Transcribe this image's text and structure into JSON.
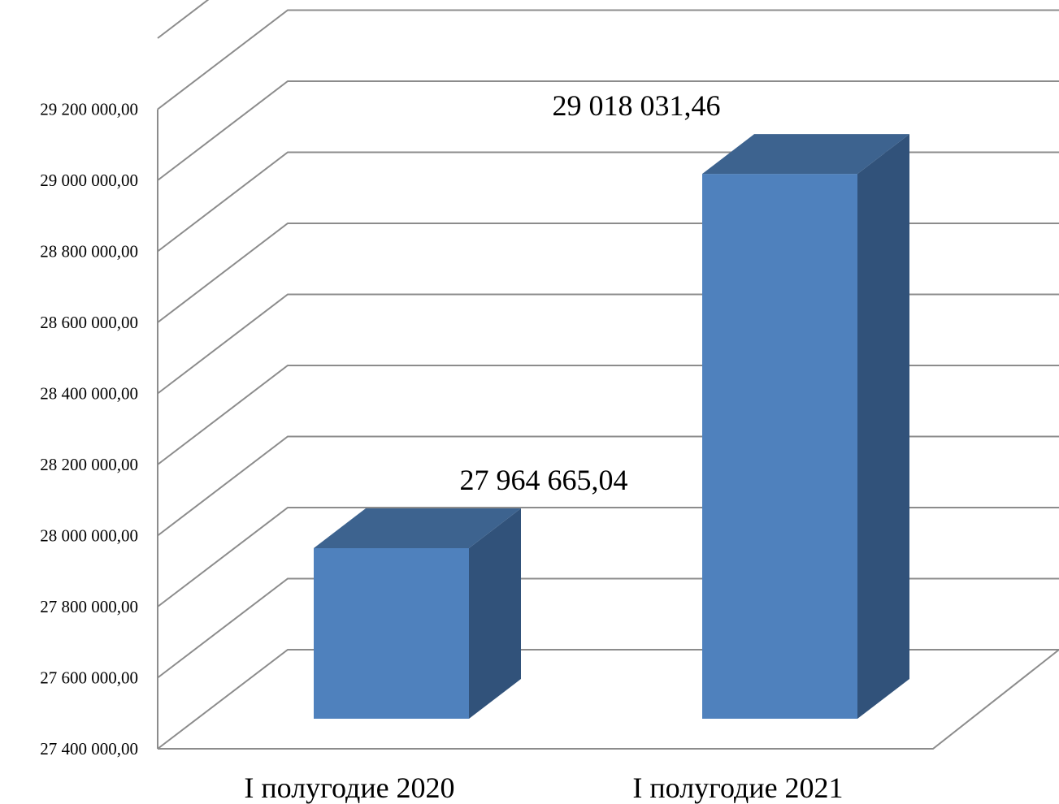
{
  "chart_data": {
    "type": "bar",
    "style": "3d-column",
    "categories": [
      "I полугодие 2020",
      "I полугодие 2021"
    ],
    "series": [
      {
        "values": [
          27964665.04,
          29018031.46
        ],
        "data_labels": [
          "27 964 665,04",
          "29 018 031,46"
        ]
      }
    ],
    "y_ticks": [
      "27 400 000,00",
      "27 600 000,00",
      "27 800 000,00",
      "28 000 000,00",
      "28 200 000,00",
      "28 400 000,00",
      "28 600 000,00",
      "28 800 000,00",
      "29 000 000,00",
      "29 200 000,00"
    ],
    "ylim": [
      27400000,
      29400000
    ],
    "grid": true,
    "legend": "none",
    "colors": {
      "bar_front": "#4f81bd",
      "bar_top": "#3d638f",
      "bar_side": "#31527a",
      "grid": "#8c8c8c"
    }
  }
}
